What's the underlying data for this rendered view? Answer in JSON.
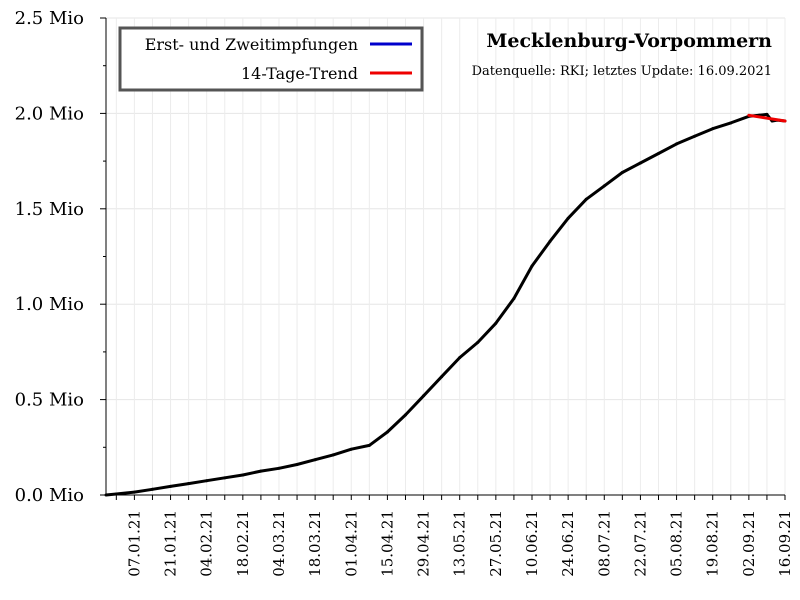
{
  "chart_data": {
    "type": "line",
    "title": "Mecklenburg-Vorpommern",
    "subtitle": "Datenquelle: RKI; letztes Update: 16.09.2021",
    "xlabel": "",
    "ylabel": "",
    "ylim": [
      0,
      2.5
    ],
    "y_unit": "Mio",
    "y_ticks": [
      "0.0 Mio",
      "0.5 Mio",
      "1.0 Mio",
      "1.5 Mio",
      "2.0 Mio",
      "2.5 Mio"
    ],
    "x_ticks": [
      "07.01.21",
      "21.01.21",
      "04.02.21",
      "18.02.21",
      "04.03.21",
      "18.03.21",
      "01.04.21",
      "15.04.21",
      "29.04.21",
      "13.05.21",
      "27.05.21",
      "10.06.21",
      "24.06.21",
      "08.07.21",
      "22.07.21",
      "05.08.21",
      "19.08.21",
      "02.09.21",
      "16.09.21"
    ],
    "xlim": [
      "27.12.20",
      "16.09.21"
    ],
    "grid": true,
    "legend_position": "top-left",
    "legend": [
      {
        "label": "Erst- und Zweitimpfungen",
        "color": "#0000cc"
      },
      {
        "label": "14-Tage-Trend",
        "color": "#ee0000"
      }
    ],
    "series": [
      {
        "name": "Erst- und Zweitimpfungen",
        "color": "#000000",
        "x": [
          "27.12.20",
          "31.12.20",
          "07.01.21",
          "14.01.21",
          "21.01.21",
          "28.01.21",
          "04.02.21",
          "11.02.21",
          "18.02.21",
          "25.02.21",
          "04.03.21",
          "11.03.21",
          "18.03.21",
          "25.03.21",
          "01.04.21",
          "08.04.21",
          "15.04.21",
          "22.04.21",
          "29.04.21",
          "06.05.21",
          "13.05.21",
          "20.05.21",
          "27.05.21",
          "03.06.21",
          "10.06.21",
          "17.06.21",
          "24.06.21",
          "01.07.21",
          "08.07.21",
          "15.07.21",
          "22.07.21",
          "29.07.21",
          "05.08.21",
          "12.08.21",
          "19.08.21",
          "26.08.21",
          "02.09.21",
          "06.09.21",
          "09.09.21",
          "11.09.21",
          "13.09.21",
          "16.09.21"
        ],
        "values": [
          0.0,
          0.005,
          0.015,
          0.03,
          0.045,
          0.06,
          0.075,
          0.09,
          0.105,
          0.125,
          0.14,
          0.16,
          0.185,
          0.21,
          0.24,
          0.26,
          0.33,
          0.42,
          0.52,
          0.62,
          0.72,
          0.8,
          0.9,
          1.03,
          1.2,
          1.33,
          1.45,
          1.55,
          1.62,
          1.69,
          1.74,
          1.79,
          1.84,
          1.88,
          1.92,
          1.95,
          1.985,
          1.99,
          1.995,
          1.96,
          1.965,
          1.96
        ]
      },
      {
        "name": "14-Tage-Trend",
        "color": "#ee0000",
        "x": [
          "02.09.21",
          "16.09.21"
        ],
        "values": [
          1.99,
          1.96
        ]
      }
    ]
  }
}
